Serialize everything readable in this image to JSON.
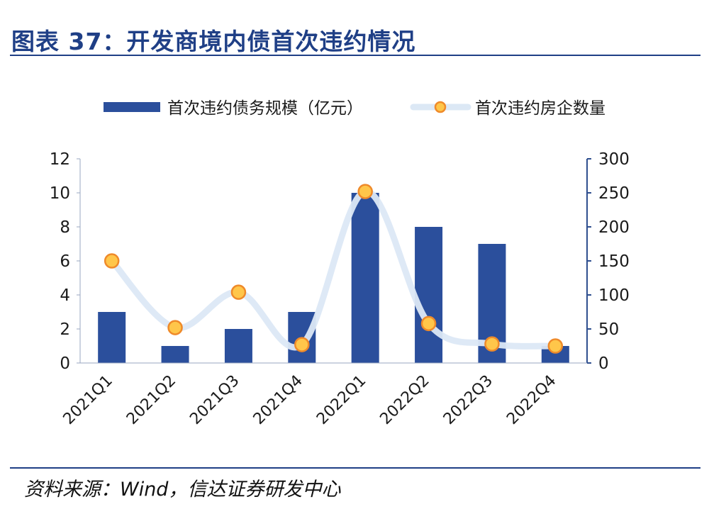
{
  "header": {
    "title": "图表 37：开发商境内债首次违约情况"
  },
  "footer": {
    "source": "资料来源：Wind，信达证券研发中心"
  },
  "colors": {
    "bar": "#2b4f9c",
    "line": "#dce8f5",
    "marker_fill": "#ffc64a",
    "marker_edge": "#ef8a2a",
    "axis": "#2f4f8f",
    "title": "#1f3f86"
  },
  "chart_data": {
    "type": "bar",
    "categories": [
      "2021Q1",
      "2021Q2",
      "2021Q3",
      "2021Q4",
      "2022Q1",
      "2022Q2",
      "2022Q3",
      "2022Q4"
    ],
    "series": [
      {
        "name": "首次违约债务规模（亿元）",
        "type": "bar",
        "axis": "left",
        "values": [
          3,
          1,
          2,
          3,
          10,
          8,
          7,
          1
        ]
      },
      {
        "name": "首次违约房企数量",
        "type": "line",
        "axis": "right",
        "values": [
          150,
          52,
          104,
          27,
          252,
          58,
          28,
          25
        ]
      }
    ],
    "y_left": {
      "lim": [
        0,
        12
      ],
      "ticks": [
        "0",
        "2",
        "4",
        "6",
        "8",
        "10",
        "12"
      ]
    },
    "y_right": {
      "lim": [
        0,
        300
      ],
      "ticks": [
        "0",
        "50",
        "100",
        "150",
        "200",
        "250",
        "300"
      ]
    },
    "legend_position": "top",
    "grid": false
  }
}
